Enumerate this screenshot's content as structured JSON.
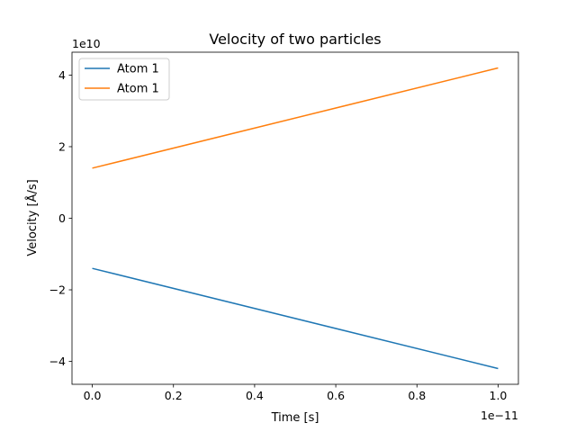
{
  "chart_data": {
    "type": "line",
    "title": "Velocity of two particles",
    "xlabel": "Time [s]",
    "ylabel": "Velocity [Å/s]",
    "x_offset_text": "1e−11",
    "y_offset_text": "1e10",
    "x_multiplier": 1e-11,
    "y_multiplier": 10000000000.0,
    "xlim": [
      -0.05,
      1.05
    ],
    "ylim": [
      -4.64,
      4.64
    ],
    "x_ticks": [
      0.0,
      0.2,
      0.4,
      0.6,
      0.8,
      1.0
    ],
    "x_tick_labels": [
      "0.0",
      "0.2",
      "0.4",
      "0.6",
      "0.8",
      "1.0"
    ],
    "y_ticks": [
      -4,
      -2,
      0,
      2,
      4
    ],
    "y_tick_labels": [
      "−4",
      "−2",
      "0",
      "2",
      "4"
    ],
    "grid": false,
    "legend_position": "upper-left",
    "series": [
      {
        "name": "Atom 1",
        "color": "#1f77b4",
        "x": [
          0.0,
          1.0
        ],
        "y": [
          -1.4,
          -4.2
        ]
      },
      {
        "name": "Atom 1",
        "color": "#ff7f0e",
        "x": [
          0.0,
          1.0
        ],
        "y": [
          1.4,
          4.2
        ]
      }
    ]
  }
}
